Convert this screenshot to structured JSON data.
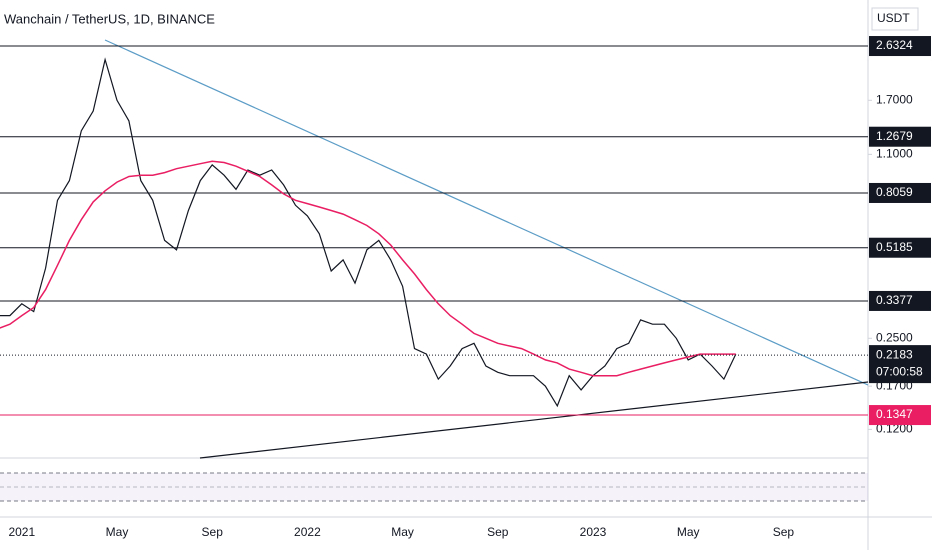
{
  "chart_data": {
    "type": "line",
    "title": "Wanchain / TetherUS, 1D, BINANCE",
    "currency": "USDT",
    "scale": "log",
    "ylim": [
      0.0953,
      3.576
    ],
    "yticks": [
      {
        "value": 1.7,
        "label": "1.7000"
      },
      {
        "value": 1.1,
        "label": "1.1000"
      },
      {
        "value": 0.25,
        "label": "0.2500"
      },
      {
        "value": 0.17,
        "label": "0.1700"
      },
      {
        "value": 0.12,
        "label": "0.1200"
      }
    ],
    "levels": [
      {
        "value": 2.6324,
        "label": "2.6324",
        "color": "#131722"
      },
      {
        "value": 1.2679,
        "label": "1.2679",
        "color": "#131722"
      },
      {
        "value": 0.8059,
        "label": "0.8059",
        "color": "#131722"
      },
      {
        "value": 0.5185,
        "label": "0.5185",
        "color": "#131722"
      },
      {
        "value": 0.3377,
        "label": "0.3377",
        "color": "#131722"
      },
      {
        "value": 0.1347,
        "label": "0.1347",
        "color": "#e91e63"
      }
    ],
    "last_price": {
      "value": 0.2183,
      "label": "0.2183",
      "countdown": "07:00:58"
    },
    "categories": [
      null,
      null,
      "2021",
      null,
      null,
      null,
      null,
      null,
      null,
      null,
      "May",
      null,
      null,
      null,
      null,
      null,
      null,
      null,
      "Sep",
      null,
      null,
      null,
      null,
      null,
      null,
      null,
      "2022",
      null,
      null,
      null,
      null,
      null,
      null,
      null,
      "May",
      null,
      null,
      null,
      null,
      null,
      null,
      null,
      "Sep",
      null,
      null,
      null,
      null,
      null,
      null,
      null,
      "2023",
      null,
      null,
      null,
      null,
      null,
      null,
      null,
      "May",
      null,
      null,
      null,
      null,
      null,
      null,
      null,
      "Sep",
      null,
      null,
      null,
      null,
      null,
      null,
      null
    ],
    "series": [
      {
        "color": "#131722",
        "values": [
          0.3,
          0.3,
          0.33,
          0.31,
          0.44,
          0.76,
          0.89,
          1.33,
          1.56,
          2.36,
          1.7,
          1.44,
          0.89,
          0.76,
          0.55,
          0.51,
          0.7,
          0.89,
          1.01,
          0.93,
          0.83,
          0.97,
          0.93,
          0.97,
          0.86,
          0.73,
          0.67,
          0.58,
          0.43,
          0.47,
          0.39,
          0.51,
          0.55,
          0.47,
          0.38,
          0.23,
          0.22,
          0.18,
          0.2,
          0.23,
          0.24,
          0.2,
          0.19,
          0.185,
          0.185,
          0.185,
          0.17,
          0.145,
          0.185,
          0.165,
          0.185,
          0.2,
          0.23,
          0.24,
          0.29,
          0.28,
          0.28,
          0.25,
          0.21,
          0.22,
          0.2,
          0.18,
          0.22,
          null,
          null,
          null,
          null,
          null,
          null,
          null,
          null,
          null,
          null,
          null
        ]
      },
      {
        "color": "#e91e63",
        "values": [
          0.27,
          0.28,
          0.3,
          0.32,
          0.37,
          0.45,
          0.55,
          0.65,
          0.75,
          0.82,
          0.88,
          0.92,
          0.93,
          0.93,
          0.95,
          0.98,
          1.0,
          1.02,
          1.04,
          1.03,
          1.0,
          0.96,
          0.92,
          0.86,
          0.8,
          0.76,
          0.74,
          0.72,
          0.7,
          0.68,
          0.65,
          0.62,
          0.58,
          0.53,
          0.47,
          0.42,
          0.37,
          0.33,
          0.3,
          0.28,
          0.26,
          0.25,
          0.24,
          0.235,
          0.23,
          0.22,
          0.21,
          0.205,
          0.195,
          0.19,
          0.185,
          0.185,
          0.185,
          0.19,
          0.195,
          0.2,
          0.205,
          0.21,
          0.215,
          0.22,
          0.22,
          0.22,
          0.22,
          null,
          null,
          null,
          null,
          null,
          null,
          null,
          null,
          null,
          null,
          null
        ]
      }
    ]
  }
}
